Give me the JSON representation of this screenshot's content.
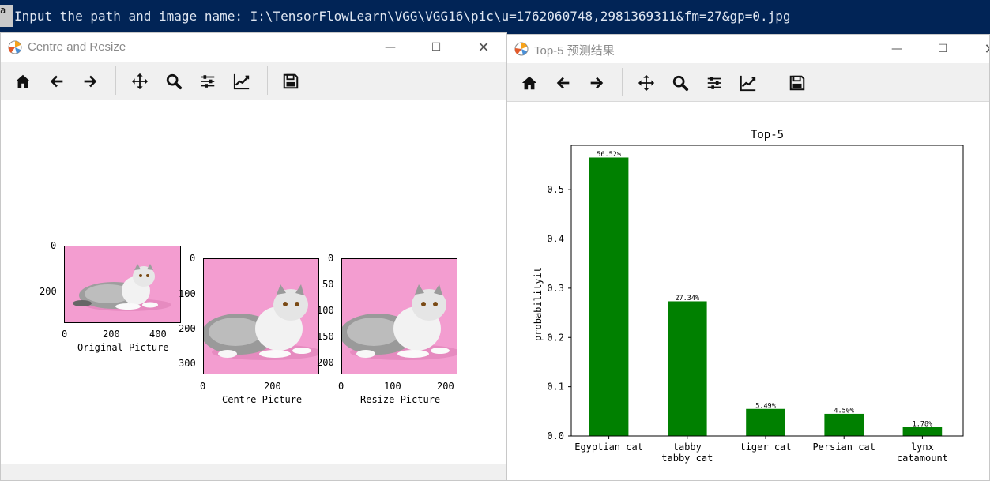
{
  "console": {
    "cursor_text": "a",
    "command_text": "Input the path and image name: I:\\TensorFlowLearn\\VGG\\VGG16\\pic\\u=1762060748,2981369311&fm=27&gp=0.jpg"
  },
  "left_window": {
    "title": "Centre and Resize",
    "toolbar": [
      "home-icon",
      "back-icon",
      "forward-icon",
      "pan-icon",
      "zoom-icon",
      "configure-subplots-icon",
      "edit-axis-icon",
      "save-icon"
    ],
    "subplots": [
      {
        "xlabel": "Original Picture",
        "xticks": [
          "0",
          "200",
          "400"
        ],
        "yticks": [
          "0",
          "200"
        ]
      },
      {
        "xlabel": "Centre Picture",
        "xticks": [
          "0",
          "200"
        ],
        "yticks": [
          "0",
          "100",
          "200",
          "300"
        ]
      },
      {
        "xlabel": "Resize Picture",
        "xticks": [
          "0",
          "100",
          "200"
        ],
        "yticks": [
          "0",
          "50",
          "100",
          "150",
          "200"
        ]
      }
    ]
  },
  "right_window": {
    "title": "Top-5 预测结果",
    "toolbar": [
      "home-icon",
      "back-icon",
      "forward-icon",
      "pan-icon",
      "zoom-icon",
      "configure-subplots-icon",
      "edit-axis-icon",
      "save-icon"
    ]
  },
  "chart_data": {
    "type": "bar",
    "title": "Top-5",
    "xlabel": "",
    "ylabel": "probabilityit",
    "categories": [
      "Egyptian cat",
      "tabby\ntabby cat",
      "tiger cat",
      "Persian cat",
      "lynx\ncatamount"
    ],
    "values": [
      0.5652,
      0.2734,
      0.0549,
      0.045,
      0.0178
    ],
    "data_labels": [
      "56.52%",
      "27.34%",
      "5.49%",
      "4.50%",
      "1.78%"
    ],
    "ylim": [
      0,
      0.59
    ],
    "yticks": [
      "0.0",
      "0.1",
      "0.2",
      "0.3",
      "0.4",
      "0.5"
    ],
    "bar_color": "#008000",
    "grid": false
  }
}
